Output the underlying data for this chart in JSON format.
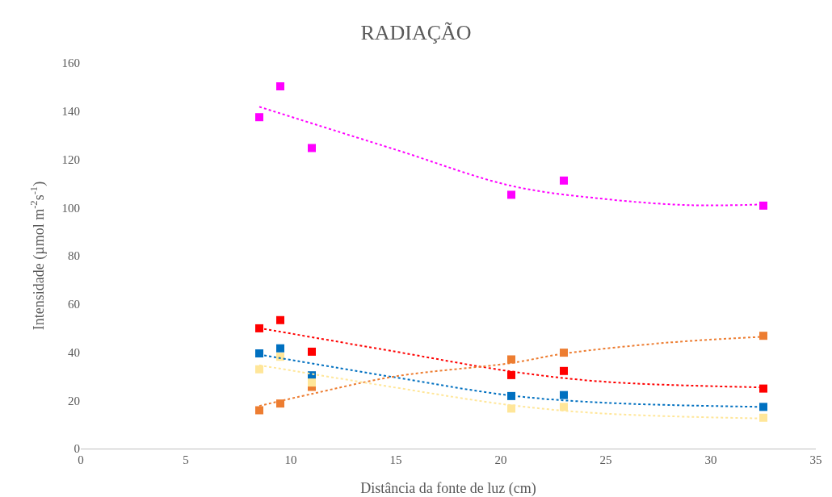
{
  "chart_data": {
    "type": "scatter",
    "title": "RADIAÇÃO",
    "xlabel": "Distância da fonte de luz (cm)",
    "ylabel": "Intensidade (µmol m$^{-2}$s$^{-1}$)",
    "xlim": [
      0,
      35
    ],
    "xticks": [
      0,
      5,
      10,
      15,
      20,
      25,
      30,
      35
    ],
    "ylim": [
      0,
      160
    ],
    "yticks": [
      0,
      20,
      40,
      60,
      80,
      100,
      120,
      140,
      160
    ],
    "grid": false,
    "marker": "square",
    "x": [
      8.5,
      9.5,
      11,
      20.5,
      23,
      32.5
    ],
    "series": [
      {
        "color": "#ff00ff",
        "values": [
          137.5,
          150.3,
          124.7,
          105.3,
          111.2,
          100.8
        ]
      },
      {
        "color": "#ff0000",
        "values": [
          49.9,
          53.3,
          40.2,
          30.5,
          32.2,
          24.9
        ]
      },
      {
        "color": "#0070c0",
        "values": [
          39.5,
          41.6,
          30.4,
          21.8,
          22.2,
          17.3
        ]
      },
      {
        "color": "#ed7d31",
        "values": [
          15.9,
          18.7,
          25.6,
          37,
          39.8,
          46.8
        ]
      },
      {
        "color": "#ffe699",
        "values": [
          32.9,
          38.1,
          27.4,
          16.6,
          17.3,
          12.8
        ]
      },
      {
        "type": "line",
        "line_style": "dotted",
        "marker": "none",
        "color": "#ff00ff",
        "x": [
          8.5,
          15,
          20.5,
          25,
          29,
          32.5
        ],
        "values": [
          141.8,
          124,
          109,
          103.5,
          101,
          101.3
        ]
      },
      {
        "type": "line",
        "line_style": "dotted",
        "marker": "none",
        "color": "#ff0000",
        "x": [
          8.5,
          15,
          20.5,
          25,
          32.5
        ],
        "values": [
          50,
          40.2,
          32,
          27.7,
          25.4
        ]
      },
      {
        "type": "line",
        "line_style": "dotted",
        "marker": "none",
        "color": "#0070c0",
        "x": [
          8.5,
          15,
          20.5,
          25,
          32.5
        ],
        "values": [
          39,
          29.5,
          22,
          19,
          17.3
        ]
      },
      {
        "type": "line",
        "line_style": "dotted",
        "marker": "none",
        "color": "#ed7d31",
        "x": [
          8.5,
          11,
          15,
          20.5,
          23,
          28,
          32.5
        ],
        "values": [
          17.7,
          22.7,
          30,
          35.5,
          39.4,
          44,
          46.4
        ]
      },
      {
        "type": "line",
        "line_style": "dotted",
        "marker": "none",
        "color": "#ffe699",
        "x": [
          8.5,
          15,
          20.5,
          25,
          32.5
        ],
        "values": [
          34.6,
          25.3,
          18,
          14.5,
          12.5
        ]
      }
    ]
  }
}
